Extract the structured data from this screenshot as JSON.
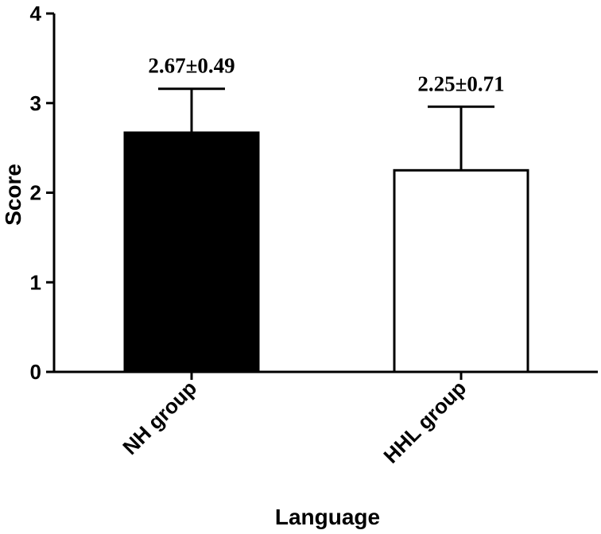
{
  "chart_data": {
    "type": "bar",
    "categories": [
      "NH group",
      "HHL group"
    ],
    "values": [
      2.67,
      2.25
    ],
    "errors": [
      0.49,
      0.71
    ],
    "data_labels": [
      "2.67±0.49",
      "2.25±0.71"
    ],
    "bar_fills": [
      "#000000",
      "#ffffff"
    ],
    "xlabel": "Language",
    "ylabel": "Score",
    "ylim": [
      0,
      4
    ],
    "yticks": [
      "0",
      "1",
      "2",
      "3",
      "4"
    ],
    "grid": false,
    "error_bars": "upper"
  }
}
